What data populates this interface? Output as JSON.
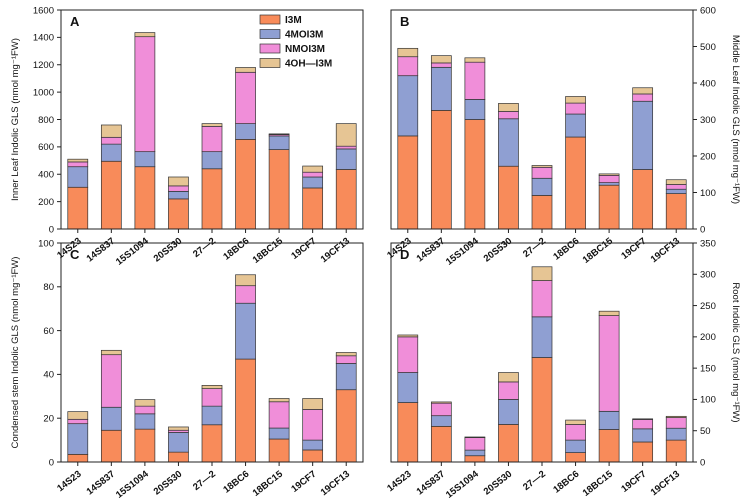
{
  "figure": {
    "series_names": [
      "I3M",
      "4MOI3M",
      "NMOI3M",
      "4OH—I3M"
    ],
    "colors": [
      "#F88B5A",
      "#8F9FD2",
      "#F08ED9",
      "#E6C594"
    ]
  },
  "chart_data": [
    {
      "id": "A",
      "type": "bar",
      "stacked": true,
      "panel_label": "A",
      "title": "",
      "xlabel": "",
      "ylabel": "Inner Leaf Indolic GLS (nmol mg⁻¹FW)",
      "ylim": [
        0,
        1600
      ],
      "yticks": [
        0,
        200,
        400,
        600,
        800,
        1000,
        1200,
        1400,
        1600
      ],
      "ytick_labels": [
        "0",
        "200",
        "400",
        "600",
        "800",
        "1000",
        "1200",
        "1400",
        "1600"
      ],
      "yaxis_side": "left",
      "categories": [
        "14S23",
        "14S837",
        "15S1094",
        "20S530",
        "27—2",
        "18BC6",
        "18BC15",
        "19CF7",
        "19CF13"
      ],
      "series": [
        {
          "name": "I3M",
          "values": [
            305,
            495,
            455,
            220,
            440,
            655,
            580,
            300,
            435
          ]
        },
        {
          "name": "4MOI3M",
          "values": [
            150,
            125,
            110,
            55,
            125,
            115,
            100,
            80,
            150
          ]
        },
        {
          "name": "NMOI3M",
          "values": [
            35,
            50,
            840,
            40,
            185,
            375,
            10,
            35,
            20
          ]
        },
        {
          "name": "4OH—I3M",
          "values": [
            20,
            90,
            30,
            65,
            20,
            35,
            5,
            45,
            165
          ]
        }
      ]
    },
    {
      "id": "B",
      "type": "bar",
      "stacked": true,
      "panel_label": "B",
      "title": "",
      "xlabel": "",
      "ylabel": "Middle Leaf Indolic GLS (nmol mg⁻¹FW)",
      "ylim": [
        0,
        600
      ],
      "yticks": [
        0,
        100,
        200,
        300,
        400,
        500,
        600
      ],
      "ytick_labels": [
        "0",
        "100",
        "200",
        "300",
        "400",
        "500",
        "600"
      ],
      "yaxis_side": "right",
      "categories": [
        "14S23",
        "14S837",
        "15S1094",
        "20S530",
        "27—2",
        "18BC6",
        "18BC15",
        "19CF7",
        "19CF13"
      ],
      "series": [
        {
          "name": "I3M",
          "values": [
            255,
            325,
            300,
            172,
            92,
            252,
            120,
            163,
            97
          ]
        },
        {
          "name": "4MOI3M",
          "values": [
            165,
            118,
            55,
            130,
            47,
            63,
            7,
            187,
            12
          ]
        },
        {
          "name": "NMOI3M",
          "values": [
            52,
            12,
            102,
            20,
            30,
            30,
            20,
            20,
            13
          ]
        },
        {
          "name": "4OH—I3M",
          "values": [
            23,
            20,
            12,
            22,
            5,
            18,
            4,
            17,
            13
          ]
        }
      ]
    },
    {
      "id": "C",
      "type": "bar",
      "stacked": true,
      "panel_label": "C",
      "title": "",
      "xlabel": "",
      "ylabel": "Condensed stem Indolic GLS (nmol mg⁻¹FW)",
      "ylim": [
        0,
        100
      ],
      "yticks": [
        0,
        20,
        40,
        60,
        80,
        100
      ],
      "ytick_labels": [
        "0",
        "20",
        "40",
        "60",
        "80",
        "100"
      ],
      "yaxis_side": "left",
      "categories": [
        "14S23",
        "14S837",
        "15S1094",
        "20S530",
        "27—2",
        "18BC6",
        "18BC15",
        "19CF7",
        "19CF13"
      ],
      "series": [
        {
          "name": "I3M",
          "values": [
            3.5,
            14.5,
            15,
            4.5,
            17,
            47,
            10.5,
            5.5,
            33
          ]
        },
        {
          "name": "4MOI3M",
          "values": [
            14,
            10.5,
            7,
            9,
            8.5,
            25.5,
            5,
            4.5,
            12
          ]
        },
        {
          "name": "NMOI3M",
          "values": [
            2,
            24,
            3.5,
            1,
            8,
            8,
            12,
            14,
            3.5
          ]
        },
        {
          "name": "4OH—I3M",
          "values": [
            3.5,
            2,
            3,
            1.5,
            1.5,
            5,
            1.5,
            5,
            1.5
          ]
        }
      ]
    },
    {
      "id": "D",
      "type": "bar",
      "stacked": true,
      "panel_label": "D",
      "title": "",
      "xlabel": "",
      "ylabel": "Root Indolic GLS (nmol mg⁻¹FW)",
      "ylim": [
        0,
        350
      ],
      "yticks": [
        0,
        50,
        100,
        150,
        200,
        250,
        300,
        350
      ],
      "ytick_labels": [
        "0",
        "50",
        "100",
        "150",
        "200",
        "250",
        "300",
        "350"
      ],
      "yaxis_side": "right",
      "categories": [
        "14S23",
        "14S837",
        "15S1094",
        "20S530",
        "27—2",
        "18BC6",
        "18BC15",
        "19CF7",
        "19CF13"
      ],
      "series": [
        {
          "name": "I3M",
          "values": [
            95,
            57,
            10,
            60,
            167,
            15,
            52,
            32,
            35
          ]
        },
        {
          "name": "4MOI3M",
          "values": [
            48,
            17,
            9,
            40,
            65,
            20,
            29,
            21,
            19
          ]
        },
        {
          "name": "NMOI3M",
          "values": [
            57,
            20,
            20,
            28,
            58,
            25,
            153,
            15,
            17
          ]
        },
        {
          "name": "4OH—I3M",
          "values": [
            3,
            2,
            1,
            15,
            22,
            7,
            7,
            1,
            2
          ]
        }
      ]
    }
  ]
}
